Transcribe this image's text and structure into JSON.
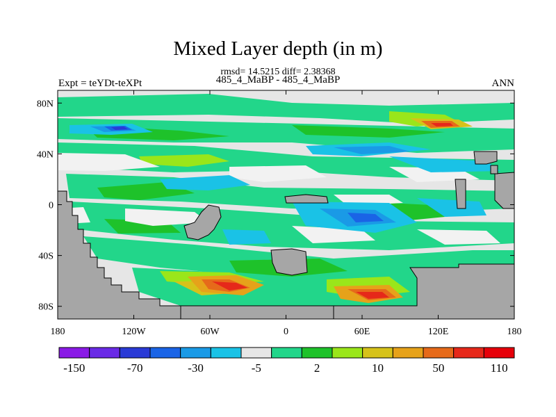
{
  "header": {
    "title": "Mixed Layer depth (in m)",
    "stats": "rmsd= 14.5215 diff= 2.38368",
    "subtitle": "485_4_MaBP - 485_4_MaBP",
    "experiment": "Expt = teYDt-teXPt",
    "season": "ANN"
  },
  "map": {
    "lat_ticks": [
      {
        "value": 80,
        "label": "80N"
      },
      {
        "value": 40,
        "label": "40N"
      },
      {
        "value": 0,
        "label": "0"
      },
      {
        "value": -40,
        "label": "40S"
      },
      {
        "value": -80,
        "label": "80S"
      }
    ],
    "lon_ticks": [
      {
        "value": -180,
        "label": "180"
      },
      {
        "value": -120,
        "label": "120W"
      },
      {
        "value": -60,
        "label": "60W"
      },
      {
        "value": 0,
        "label": "0"
      },
      {
        "value": 60,
        "label": "60E"
      },
      {
        "value": 120,
        "label": "120E"
      },
      {
        "value": 180,
        "label": "180"
      }
    ],
    "lon_range": [
      -180,
      180
    ],
    "lat_range": [
      -90,
      90
    ],
    "land_color": "#a6a6a6",
    "neutral_color": "#e6e6e6"
  },
  "colorbar": {
    "colors": [
      "#8a1ae6",
      "#6a2ae6",
      "#2a3ad6",
      "#1a64e6",
      "#1a9ae6",
      "#1ac2e6",
      "#e6e6e6",
      "#22d68a",
      "#1ec22a",
      "#9ae61a",
      "#d6c21a",
      "#e6a21a",
      "#e66a1a",
      "#e6281a",
      "#e6000a"
    ],
    "labels": [
      {
        "boundary": 1,
        "text": "-150"
      },
      {
        "boundary": 3,
        "text": "-70"
      },
      {
        "boundary": 5,
        "text": "-30"
      },
      {
        "boundary": 7,
        "text": "-5"
      },
      {
        "boundary": 9,
        "text": "2"
      },
      {
        "boundary": 11,
        "text": "10"
      },
      {
        "boundary": 13,
        "text": "50"
      },
      {
        "boundary": 15,
        "text": "110"
      }
    ]
  }
}
